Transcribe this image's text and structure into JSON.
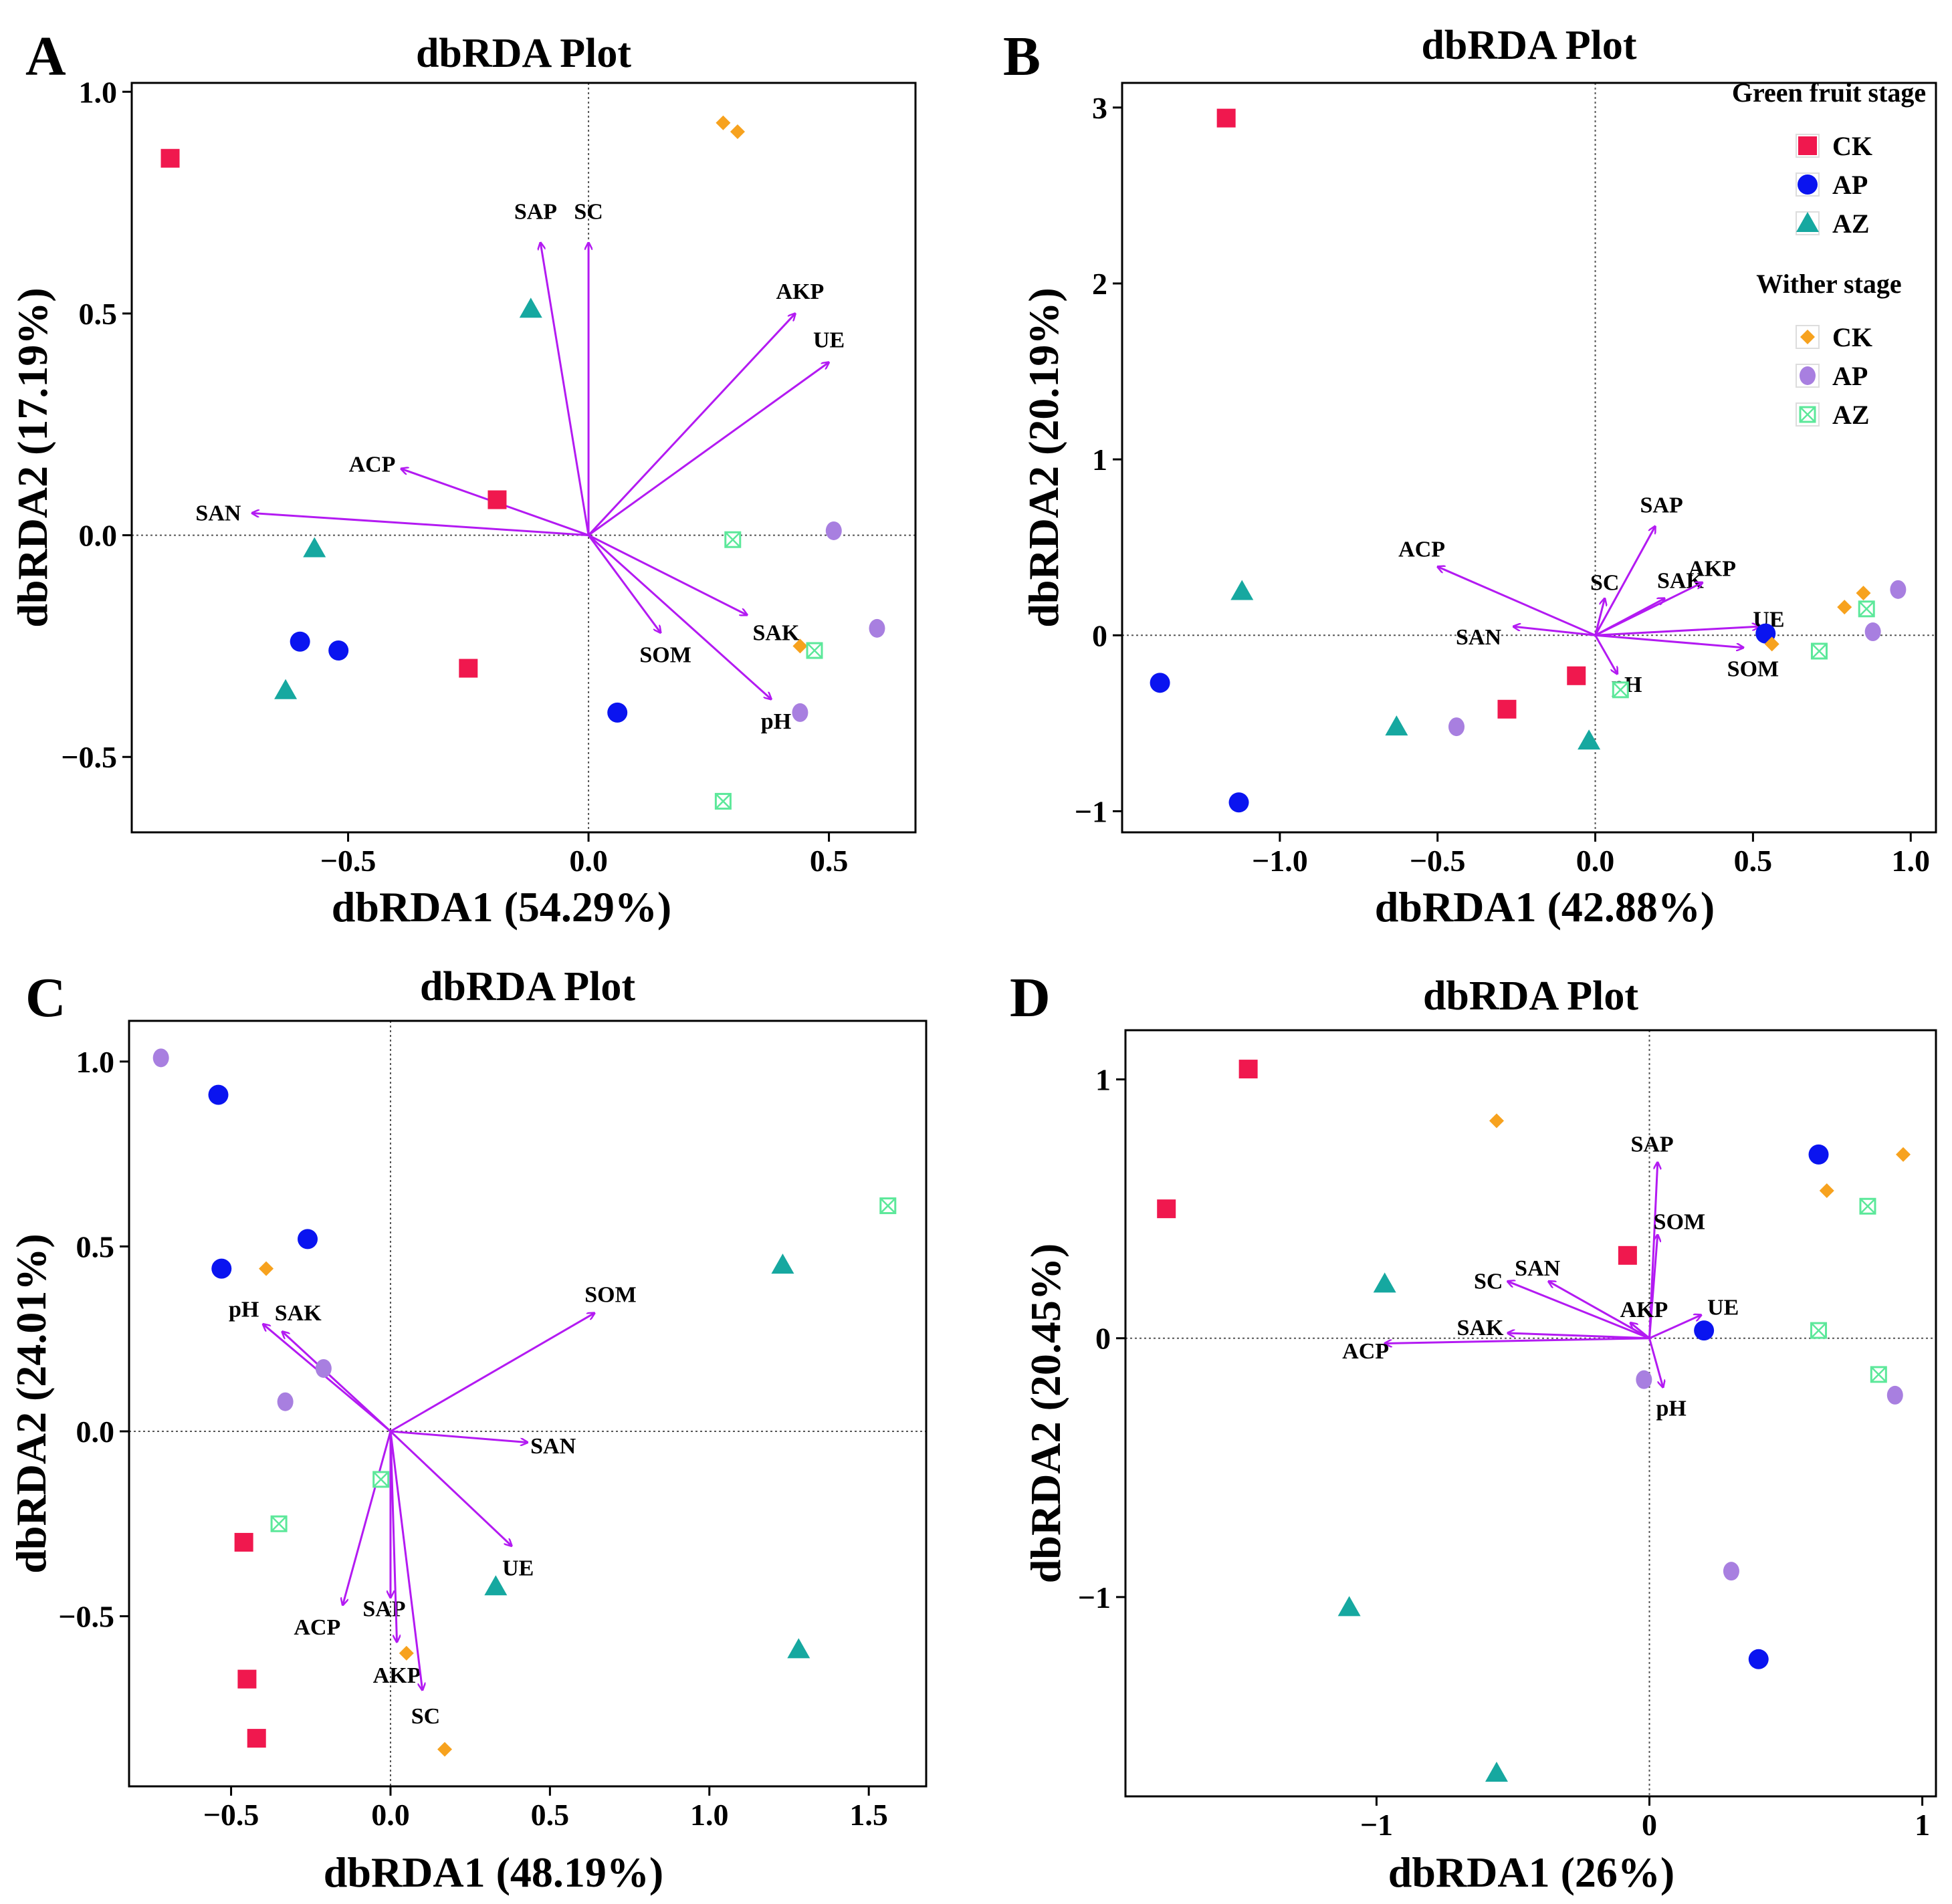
{
  "colors": {
    "green_ck": "#f0184e",
    "green_ap": "#0a14f0",
    "green_az": "#16a8a0",
    "wither_ck": "#f7a21e",
    "wither_ap": "#a87fe0",
    "wither_az": "#5ce89a",
    "arrow": "#b31af2",
    "axis": "#000000"
  },
  "legend": {
    "groups": [
      {
        "title": "Green fruit stage",
        "entries": [
          {
            "label": "CK",
            "marker": "square",
            "color_key": "green_ck"
          },
          {
            "label": "AP",
            "marker": "circle",
            "color_key": "green_ap"
          },
          {
            "label": "AZ",
            "marker": "triangle",
            "color_key": "green_az"
          }
        ]
      },
      {
        "title": "Wither stage",
        "entries": [
          {
            "label": "CK",
            "marker": "diamond",
            "color_key": "wither_ck"
          },
          {
            "label": "AP",
            "marker": "ellipse",
            "color_key": "wither_ap"
          },
          {
            "label": "AZ",
            "marker": "boxx",
            "color_key": "wither_az"
          }
        ]
      }
    ]
  },
  "chart_data": [
    {
      "type": "scatter",
      "panel": "A",
      "title": "dbRDA Plot",
      "xlabel": "dbRDA1 (54.29%)",
      "ylabel": "dbRDA2 (17.19%)",
      "xlim": [
        -0.95,
        0.68
      ],
      "ylim": [
        -0.67,
        1.02
      ],
      "xticks": [
        -0.5,
        0.0,
        0.5
      ],
      "xtick_labels": [
        "−0.5",
        "0.0",
        "0.5"
      ],
      "yticks": [
        -0.5,
        0.0,
        0.5,
        1.0
      ],
      "ytick_labels": [
        "−0.5",
        "0.0",
        "0.5",
        "1.0"
      ],
      "series": [
        {
          "name": "Green fruit stage CK",
          "marker": "square",
          "color_key": "green_ck",
          "points": [
            [
              -0.87,
              0.85
            ],
            [
              -0.19,
              0.08
            ],
            [
              -0.25,
              -0.3
            ]
          ]
        },
        {
          "name": "Green fruit stage AP",
          "marker": "circle",
          "color_key": "green_ap",
          "points": [
            [
              -0.6,
              -0.24
            ],
            [
              -0.52,
              -0.26
            ],
            [
              0.06,
              -0.4
            ]
          ]
        },
        {
          "name": "Green fruit stage AZ",
          "marker": "triangle",
          "color_key": "green_az",
          "points": [
            [
              -0.12,
              0.51
            ],
            [
              -0.57,
              -0.03
            ],
            [
              -0.63,
              -0.35
            ]
          ]
        },
        {
          "name": "Wither stage CK",
          "marker": "diamond",
          "color_key": "wither_ck",
          "points": [
            [
              0.28,
              0.93
            ],
            [
              0.31,
              0.91
            ],
            [
              0.44,
              -0.25
            ]
          ]
        },
        {
          "name": "Wither stage AP",
          "marker": "ellipse",
          "color_key": "wither_ap",
          "points": [
            [
              0.51,
              0.01
            ],
            [
              0.6,
              -0.21
            ],
            [
              0.44,
              -0.4
            ]
          ]
        },
        {
          "name": "Wither stage AZ",
          "marker": "boxx",
          "color_key": "wither_az",
          "points": [
            [
              0.3,
              -0.01
            ],
            [
              0.47,
              -0.26
            ],
            [
              0.28,
              -0.6
            ]
          ]
        }
      ],
      "arrows": [
        {
          "label": "SAP",
          "x": -0.1,
          "y": 0.66,
          "label_dx": -0.01,
          "label_dy": 0.07
        },
        {
          "label": "SC",
          "x": 0.0,
          "y": 0.66,
          "label_dx": 0.0,
          "label_dy": 0.07
        },
        {
          "label": "AKP",
          "x": 0.43,
          "y": 0.5,
          "label_dx": 0.01,
          "label_dy": 0.05
        },
        {
          "label": "UE",
          "x": 0.5,
          "y": 0.39,
          "label_dx": 0.0,
          "label_dy": 0.05
        },
        {
          "label": "ACP",
          "x": -0.39,
          "y": 0.15,
          "label_dx": -0.06,
          "label_dy": 0.01
        },
        {
          "label": "SAN",
          "x": -0.7,
          "y": 0.05,
          "label_dx": -0.07,
          "label_dy": 0.0
        },
        {
          "label": "SOM",
          "x": 0.15,
          "y": -0.22,
          "label_dx": 0.01,
          "label_dy": -0.05
        },
        {
          "label": "SAK",
          "x": 0.33,
          "y": -0.18,
          "label_dx": 0.06,
          "label_dy": -0.04
        },
        {
          "label": "pH",
          "x": 0.38,
          "y": -0.37,
          "label_dx": 0.01,
          "label_dy": -0.05
        }
      ]
    },
    {
      "type": "scatter",
      "panel": "B",
      "title": "dbRDA Plot",
      "xlabel": "dbRDA1 (42.88%)",
      "ylabel": "dbRDA2 (20.19%)",
      "xlim": [
        -1.5,
        1.08
      ],
      "ylim": [
        -1.12,
        3.14
      ],
      "xticks": [
        -1.0,
        -0.5,
        0.0,
        0.5,
        1.0
      ],
      "xtick_labels": [
        "−1.0",
        "−0.5",
        "0.0",
        "0.5",
        "1.0"
      ],
      "yticks": [
        -1,
        0,
        1,
        2,
        3
      ],
      "ytick_labels": [
        "−1",
        "0",
        "1",
        "2",
        "3"
      ],
      "series": [
        {
          "name": "Green fruit stage CK",
          "marker": "square",
          "color_key": "green_ck",
          "points": [
            [
              -1.17,
              2.94
            ],
            [
              -0.06,
              -0.23
            ],
            [
              -0.28,
              -0.42
            ]
          ]
        },
        {
          "name": "Green fruit stage AP",
          "marker": "circle",
          "color_key": "green_ap",
          "points": [
            [
              -1.38,
              -0.27
            ],
            [
              -1.13,
              -0.95
            ],
            [
              0.54,
              0.01
            ]
          ]
        },
        {
          "name": "Green fruit stage AZ",
          "marker": "triangle",
          "color_key": "green_az",
          "points": [
            [
              -1.12,
              0.25
            ],
            [
              -0.63,
              -0.52
            ],
            [
              -0.02,
              -0.6
            ]
          ]
        },
        {
          "name": "Wither stage CK",
          "marker": "diamond",
          "color_key": "wither_ck",
          "points": [
            [
              0.56,
              -0.05
            ],
            [
              0.79,
              0.16
            ],
            [
              0.85,
              0.24
            ]
          ]
        },
        {
          "name": "Wither stage AP",
          "marker": "ellipse",
          "color_key": "wither_ap",
          "points": [
            [
              -0.44,
              -0.52
            ],
            [
              0.88,
              0.02
            ],
            [
              0.96,
              0.26
            ]
          ]
        },
        {
          "name": "Wither stage AZ",
          "marker": "boxx",
          "color_key": "wither_az",
          "points": [
            [
              0.08,
              -0.31
            ],
            [
              0.71,
              -0.09
            ],
            [
              0.86,
              0.15
            ]
          ]
        }
      ],
      "arrows": [
        {
          "label": "SAP",
          "x": 0.19,
          "y": 0.62,
          "label_dx": 0.02,
          "label_dy": 0.12
        },
        {
          "label": "ACP",
          "x": -0.5,
          "y": 0.39,
          "label_dx": -0.05,
          "label_dy": 0.1
        },
        {
          "label": "SC",
          "x": 0.03,
          "y": 0.21,
          "label_dx": 0.0,
          "label_dy": 0.09
        },
        {
          "label": "SAK",
          "x": 0.22,
          "y": 0.21,
          "label_dx": 0.05,
          "label_dy": 0.1
        },
        {
          "label": "AKP",
          "x": 0.34,
          "y": 0.3,
          "label_dx": 0.03,
          "label_dy": 0.08
        },
        {
          "label": "SAN",
          "x": -0.26,
          "y": 0.05,
          "label_dx": -0.11,
          "label_dy": -0.06
        },
        {
          "label": "UE",
          "x": 0.52,
          "y": 0.05,
          "label_dx": 0.03,
          "label_dy": 0.04
        },
        {
          "label": "SOM",
          "x": 0.47,
          "y": -0.07,
          "label_dx": 0.03,
          "label_dy": -0.12
        },
        {
          "label": "pH",
          "x": 0.07,
          "y": -0.22,
          "label_dx": 0.03,
          "label_dy": -0.06
        }
      ]
    },
    {
      "type": "scatter",
      "panel": "C",
      "title": "dbRDA Plot",
      "xlabel": "dbRDA1 (48.19%)",
      "ylabel": "dbRDA2 (24.01%)",
      "xlim": [
        -0.82,
        1.68
      ],
      "ylim": [
        -0.96,
        1.11
      ],
      "xticks": [
        -0.5,
        0.0,
        0.5,
        1.0,
        1.5
      ],
      "xtick_labels": [
        "−0.5",
        "0.0",
        "0.5",
        "1.0",
        "1.5"
      ],
      "yticks": [
        -0.5,
        0.0,
        0.5,
        1.0
      ],
      "ytick_labels": [
        "−0.5",
        "0.0",
        "0.5",
        "1.0"
      ],
      "series": [
        {
          "name": "Green fruit stage CK",
          "marker": "square",
          "color_key": "green_ck",
          "points": [
            [
              -0.46,
              -0.3
            ],
            [
              -0.45,
              -0.67
            ],
            [
              -0.42,
              -0.83
            ]
          ]
        },
        {
          "name": "Green fruit stage AP",
          "marker": "circle",
          "color_key": "green_ap",
          "points": [
            [
              -0.54,
              0.91
            ],
            [
              -0.53,
              0.44
            ],
            [
              -0.26,
              0.52
            ]
          ]
        },
        {
          "name": "Green fruit stage AZ",
          "marker": "triangle",
          "color_key": "green_az",
          "points": [
            [
              1.23,
              0.45
            ],
            [
              0.33,
              -0.42
            ],
            [
              1.28,
              -0.59
            ]
          ]
        },
        {
          "name": "Wither stage CK",
          "marker": "diamond",
          "color_key": "wither_ck",
          "points": [
            [
              -0.39,
              0.44
            ],
            [
              0.05,
              -0.6
            ],
            [
              0.17,
              -0.86
            ]
          ]
        },
        {
          "name": "Wither stage AP",
          "marker": "ellipse",
          "color_key": "wither_ap",
          "points": [
            [
              -0.72,
              1.01
            ],
            [
              -0.21,
              0.17
            ],
            [
              -0.33,
              0.08
            ]
          ]
        },
        {
          "name": "Wither stage AZ",
          "marker": "boxx",
          "color_key": "wither_az",
          "points": [
            [
              1.56,
              0.61
            ],
            [
              -0.03,
              -0.13
            ],
            [
              -0.35,
              -0.25
            ]
          ]
        }
      ],
      "arrows": [
        {
          "label": "SOM",
          "x": 0.64,
          "y": 0.32,
          "label_dx": 0.05,
          "label_dy": 0.05
        },
        {
          "label": "pH",
          "x": -0.4,
          "y": 0.29,
          "label_dx": -0.06,
          "label_dy": 0.04
        },
        {
          "label": "SAK",
          "x": -0.34,
          "y": 0.27,
          "label_dx": 0.05,
          "label_dy": 0.05
        },
        {
          "label": "SAN",
          "x": 0.43,
          "y": -0.03,
          "label_dx": 0.08,
          "label_dy": -0.01
        },
        {
          "label": "UE",
          "x": 0.38,
          "y": -0.31,
          "label_dx": 0.02,
          "label_dy": -0.06
        },
        {
          "label": "ACP",
          "x": -0.15,
          "y": -0.47,
          "label_dx": -0.08,
          "label_dy": -0.06
        },
        {
          "label": "SAP",
          "x": 0.0,
          "y": -0.45,
          "label_dx": -0.02,
          "label_dy": -0.03
        },
        {
          "label": "AKP",
          "x": 0.02,
          "y": -0.57,
          "label_dx": 0.0,
          "label_dy": -0.09
        },
        {
          "label": "SC",
          "x": 0.1,
          "y": -0.7,
          "label_dx": 0.01,
          "label_dy": -0.07
        }
      ]
    },
    {
      "type": "scatter",
      "panel": "D",
      "title": "dbRDA Plot",
      "xlabel": "dbRDA1 (26%)",
      "ylabel": "dbRDA2 (20.45%)",
      "xlim": [
        -1.92,
        1.05
      ],
      "ylim": [
        -1.77,
        1.19
      ],
      "xticks": [
        -1,
        0,
        1
      ],
      "xtick_labels": [
        "−1",
        "0",
        "1"
      ],
      "yticks": [
        -1,
        0,
        1
      ],
      "ytick_labels": [
        "−1",
        "0",
        "1"
      ],
      "series": [
        {
          "name": "Green fruit stage CK",
          "marker": "square",
          "color_key": "green_ck",
          "points": [
            [
              -1.47,
              1.04
            ],
            [
              -1.77,
              0.5
            ],
            [
              -0.08,
              0.32
            ]
          ]
        },
        {
          "name": "Green fruit stage AP",
          "marker": "circle",
          "color_key": "green_ap",
          "points": [
            [
              0.62,
              0.71
            ],
            [
              0.2,
              0.03
            ],
            [
              0.4,
              -1.24
            ]
          ]
        },
        {
          "name": "Green fruit stage AZ",
          "marker": "triangle",
          "color_key": "green_az",
          "points": [
            [
              -0.97,
              0.21
            ],
            [
              -1.1,
              -1.04
            ],
            [
              -0.56,
              -1.68
            ]
          ]
        },
        {
          "name": "Wither stage CK",
          "marker": "diamond",
          "color_key": "wither_ck",
          "points": [
            [
              -0.56,
              0.84
            ],
            [
              0.65,
              0.57
            ],
            [
              0.93,
              0.71
            ]
          ]
        },
        {
          "name": "Wither stage AP",
          "marker": "ellipse",
          "color_key": "wither_ap",
          "points": [
            [
              -0.02,
              -0.16
            ],
            [
              0.3,
              -0.9
            ],
            [
              0.9,
              -0.22
            ]
          ]
        },
        {
          "name": "Wither stage AZ",
          "marker": "boxx",
          "color_key": "wither_az",
          "points": [
            [
              0.8,
              0.51
            ],
            [
              0.62,
              0.03
            ],
            [
              0.84,
              -0.14
            ]
          ]
        }
      ],
      "arrows": [
        {
          "label": "SAP",
          "x": 0.03,
          "y": 0.68,
          "label_dx": -0.02,
          "label_dy": 0.07
        },
        {
          "label": "SOM",
          "x": 0.03,
          "y": 0.4,
          "label_dx": 0.08,
          "label_dy": 0.05
        },
        {
          "label": "SAN",
          "x": -0.37,
          "y": 0.22,
          "label_dx": -0.04,
          "label_dy": 0.05
        },
        {
          "label": "SC",
          "x": -0.52,
          "y": 0.22,
          "label_dx": -0.07,
          "label_dy": 0.0
        },
        {
          "label": "AKP",
          "x": -0.07,
          "y": 0.06,
          "label_dx": 0.05,
          "label_dy": 0.05
        },
        {
          "label": "UE",
          "x": 0.19,
          "y": 0.09,
          "label_dx": 0.08,
          "label_dy": 0.03
        },
        {
          "label": "SAK",
          "x": -0.52,
          "y": 0.02,
          "label_dx": -0.1,
          "label_dy": 0.02
        },
        {
          "label": "ACP",
          "x": -0.97,
          "y": -0.02,
          "label_dx": -0.07,
          "label_dy": -0.03
        },
        {
          "label": "pH",
          "x": 0.05,
          "y": -0.19,
          "label_dx": 0.03,
          "label_dy": -0.08
        }
      ]
    }
  ]
}
